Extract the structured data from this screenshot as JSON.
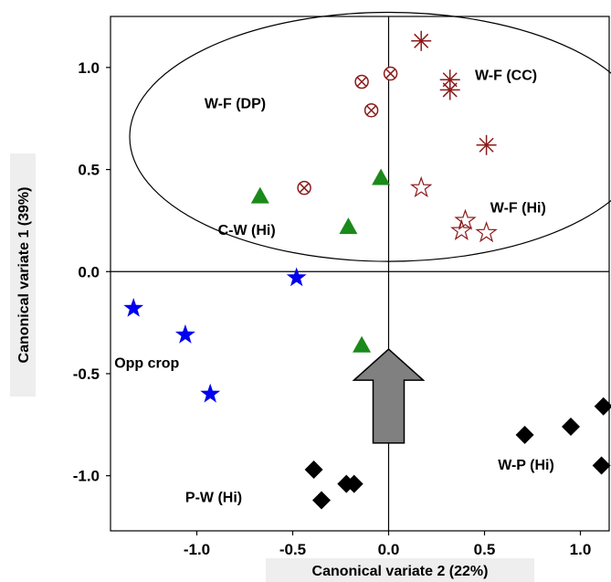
{
  "chart_data": {
    "type": "scatter",
    "title": "",
    "xlabel": "Canonical variate 2 (22%)",
    "ylabel": "Canonical variate 1 (39%)",
    "xlim": [
      -1.45,
      1.15
    ],
    "ylim": [
      -1.27,
      1.25
    ],
    "x_ticks": [
      -1.0,
      -0.5,
      0.0,
      0.5,
      1.0
    ],
    "x_tick_labels": [
      "-1.0",
      "-0.5",
      "0.0",
      "0.5",
      "1.0"
    ],
    "y_ticks": [
      -1.0,
      -0.5,
      0.0,
      0.5,
      1.0
    ],
    "y_tick_labels": [
      "-1.0",
      "-0.5",
      "0.0",
      "0.5",
      "1.0"
    ],
    "grid": false,
    "reference_lines": {
      "x": 0.0,
      "y": 0.0
    },
    "ellipse": {
      "center": [
        0.0,
        0.66
      ],
      "radii": [
        1.35,
        0.61
      ],
      "color": "#000000"
    },
    "arrow": {
      "direction": "up",
      "x": 0.0,
      "y_base": -0.84,
      "y_tip": -0.38,
      "color": "#808080"
    },
    "series": [
      {
        "marker": "circle-x",
        "color": "#8B1A1A",
        "points": [
          [
            -0.14,
            0.93
          ],
          [
            0.01,
            0.97
          ],
          [
            -0.09,
            0.79
          ],
          [
            -0.44,
            0.41
          ]
        ]
      },
      {
        "marker": "asterisk",
        "color": "#8B1A1A",
        "points": [
          [
            0.17,
            1.13
          ],
          [
            0.32,
            0.94
          ],
          [
            0.32,
            0.89
          ],
          [
            0.51,
            0.62
          ]
        ]
      },
      {
        "marker": "star-open",
        "color": "#8B1A1A",
        "points": [
          [
            0.17,
            0.41
          ],
          [
            0.4,
            0.25
          ],
          [
            0.38,
            0.2
          ],
          [
            0.51,
            0.19
          ]
        ]
      },
      {
        "marker": "triangle",
        "color": "#1A8A1A",
        "points": [
          [
            -0.67,
            0.37
          ],
          [
            -0.21,
            0.22
          ],
          [
            -0.04,
            0.46
          ],
          [
            -0.14,
            -0.36
          ]
        ]
      },
      {
        "marker": "star",
        "color": "#0000EE",
        "points": [
          [
            -0.48,
            -0.03
          ],
          [
            -1.33,
            -0.18
          ],
          [
            -1.06,
            -0.31
          ],
          [
            -0.93,
            -0.6
          ]
        ]
      },
      {
        "marker": "diamond",
        "color": "#000000",
        "points": [
          [
            -0.39,
            -0.97
          ],
          [
            -0.22,
            -1.04
          ],
          [
            -0.18,
            -1.04
          ],
          [
            -0.35,
            -1.12
          ],
          [
            0.71,
            -0.8
          ],
          [
            0.95,
            -0.76
          ],
          [
            1.12,
            -0.66
          ],
          [
            1.11,
            -0.95
          ]
        ]
      }
    ],
    "annotations": [
      {
        "text": "W-F (DP)",
        "x": -0.96,
        "y": 0.8
      },
      {
        "text": "W-F (CC)",
        "x": 0.45,
        "y": 0.94
      },
      {
        "text": "W-F (Hi)",
        "x": 0.53,
        "y": 0.29
      },
      {
        "text": "C-W (Hi)",
        "x": -0.89,
        "y": 0.18
      },
      {
        "text": "Opp crop",
        "x": -1.43,
        "y": -0.47
      },
      {
        "text": "P-W (Hi)",
        "x": -1.06,
        "y": -1.13
      },
      {
        "text": "W-P (Hi)",
        "x": 0.57,
        "y": -0.97
      }
    ]
  }
}
